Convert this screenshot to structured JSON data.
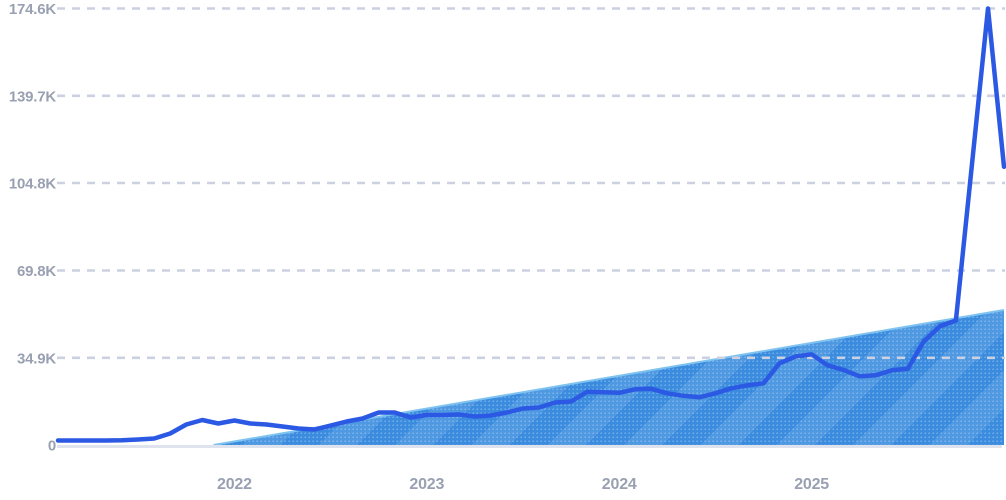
{
  "colors": {
    "background": "#ffffff",
    "line": "#2b59e3",
    "area_base": "#3b8cdf",
    "area_dot": "rgba(255,255,255,0.30)",
    "area_stripe": "rgba(255,255,255,0.10)",
    "area_edge": "#7fc3f0",
    "grid": "#cbd1e0",
    "axis_line": "#dfe3ed",
    "label": "#99a0b1"
  },
  "chart_data": {
    "type": "area",
    "title": "",
    "xlabel": "",
    "ylabel": "",
    "legend": "none",
    "grid": "dashed-horizontal",
    "x_axis": {
      "start_month": "2021-02",
      "months_total": 60,
      "tick_labels": [
        "2022",
        "2023",
        "2024",
        "2025"
      ],
      "tick_month_indices": [
        11,
        23,
        35,
        47
      ]
    },
    "y_axis": {
      "tick_labels": [
        "0",
        "34.9K",
        "69.8K",
        "104.8K",
        "139.7K",
        "174.6K"
      ],
      "tick_values": [
        0,
        34900,
        69800,
        104800,
        139700,
        174600
      ],
      "ylim": [
        0,
        178000
      ]
    },
    "series": [
      {
        "name": "monthly-mentions-line",
        "type": "line",
        "values": [
          1800,
          1800,
          1800,
          1800,
          1900,
          2200,
          2600,
          4600,
          8200,
          10000,
          8600,
          9800,
          8600,
          8200,
          7400,
          6600,
          6200,
          7800,
          9400,
          10600,
          13000,
          13000,
          11000,
          12000,
          12000,
          12200,
          11400,
          11800,
          13000,
          14600,
          15000,
          17000,
          17400,
          21300,
          21100,
          20900,
          22300,
          22500,
          20700,
          19700,
          19100,
          20700,
          22700,
          23900,
          24700,
          32700,
          35400,
          36300,
          31900,
          30000,
          27500,
          27900,
          29900,
          30500,
          41500,
          47500,
          49800,
          112000,
          174600,
          111300
        ]
      },
      {
        "name": "linear-trend-area",
        "type": "area-wedge",
        "hatch": "diagonal-stripes-with-dots",
        "start": {
          "month_index": 9.7,
          "value": 0
        },
        "end": {
          "month_index": 59,
          "value": 54000
        }
      }
    ]
  }
}
